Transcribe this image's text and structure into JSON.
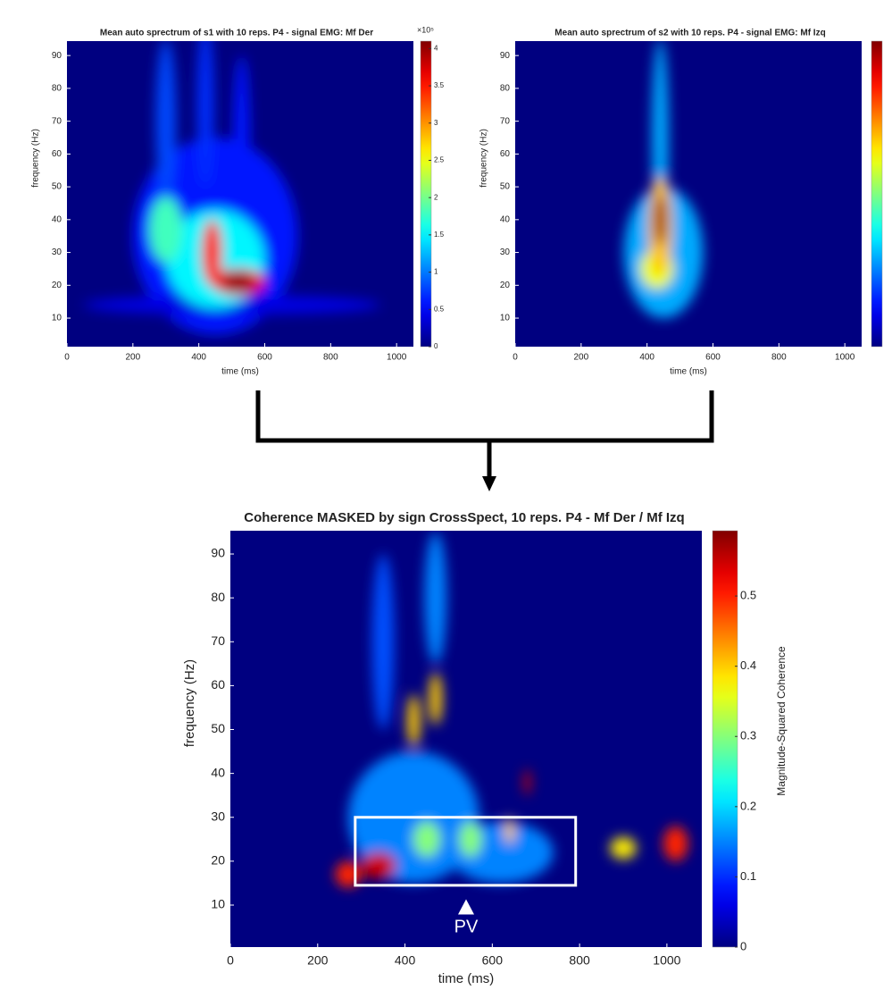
{
  "chart_data": [
    {
      "type": "heatmap",
      "title": "Mean auto sprectrum of s1 with 10 reps. P4 - signal EMG: Mf Der",
      "xlabel": "time (ms)",
      "ylabel": "frequency (Hz)",
      "xlim": [
        0,
        1051
      ],
      "ylim": [
        1.3,
        94.4
      ],
      "xticks": [
        0,
        200,
        400,
        600,
        800,
        1000
      ],
      "yticks": [
        10,
        20,
        30,
        40,
        50,
        60,
        70,
        80,
        90
      ],
      "zlim": [
        0,
        4.1
      ],
      "cticks": [
        0,
        0.5,
        1,
        1.5,
        2,
        2.5,
        3,
        3.5,
        4
      ],
      "colorbar_exponent": "×10⁵",
      "spots": [
        {
          "x": 450,
          "y": 35,
          "sx": 250,
          "sy": 30,
          "value": 0.6
        },
        {
          "x": 500,
          "y": 14,
          "sx": 450,
          "sy": 3,
          "value": 0.4
        },
        {
          "x": 300,
          "y": 70,
          "sx": 30,
          "sy": 25,
          "value": 0.8
        },
        {
          "x": 420,
          "y": 75,
          "sx": 25,
          "sy": 25,
          "value": 0.7
        },
        {
          "x": 530,
          "y": 65,
          "sx": 25,
          "sy": 25,
          "value": 0.6
        },
        {
          "x": 450,
          "y": 28,
          "sx": 150,
          "sy": 15,
          "value": 1.5
        },
        {
          "x": 300,
          "y": 37,
          "sx": 50,
          "sy": 10,
          "value": 1.8
        },
        {
          "x": 440,
          "y": 30,
          "sx": 30,
          "sy": 10,
          "value": 3.5
        },
        {
          "x": 520,
          "y": 21,
          "sx": 80,
          "sy": 4,
          "value": 3.6
        },
        {
          "x": 520,
          "y": 21,
          "sx": 50,
          "sy": 3,
          "value": 4.0
        }
      ]
    },
    {
      "type": "heatmap",
      "title": "Mean auto sprectrum of s2 with 10 reps. P4 - signal EMG: Mf Izq",
      "xlabel": "time (ms)",
      "ylabel": "frequency (Hz)",
      "xlim": [
        0,
        1051
      ],
      "ylim": [
        1.3,
        94.4
      ],
      "xticks": [
        0,
        200,
        400,
        600,
        800,
        1000
      ],
      "yticks": [
        10,
        20,
        30,
        40,
        50,
        60,
        70,
        80,
        90
      ],
      "zlim": [
        0,
        4.1
      ],
      "spots": [
        {
          "x": 450,
          "y": 30,
          "sx": 120,
          "sy": 20,
          "value": 1.2
        },
        {
          "x": 440,
          "y": 65,
          "sx": 25,
          "sy": 30,
          "value": 1.2
        },
        {
          "x": 430,
          "y": 25,
          "sx": 50,
          "sy": 6,
          "value": 2.5
        },
        {
          "x": 440,
          "y": 38,
          "sx": 35,
          "sy": 15,
          "value": 2.8
        },
        {
          "x": 440,
          "y": 40,
          "sx": 18,
          "sy": 8,
          "value": 4.0
        }
      ]
    },
    {
      "type": "heatmap",
      "title": "Coherence MASKED by sign CrossSpect, 10 reps. P4 - Mf Der / Mf Izq",
      "xlabel": "time (ms)",
      "ylabel": "frequency (Hz)",
      "xlim": [
        0,
        1080
      ],
      "ylim": [
        0.43,
        95.3
      ],
      "xticks": [
        0,
        200,
        400,
        600,
        800,
        1000
      ],
      "yticks": [
        10,
        20,
        30,
        40,
        50,
        60,
        70,
        80,
        90
      ],
      "zlim": [
        0,
        0.593
      ],
      "cticks": [
        0,
        0.1,
        0.2,
        0.3,
        0.4,
        0.5
      ],
      "colorbar_label": "Magnitude-Squared Coherence",
      "spots": [
        {
          "x": 420,
          "y": 30,
          "sx": 150,
          "sy": 15,
          "value": 0.15
        },
        {
          "x": 620,
          "y": 22,
          "sx": 120,
          "sy": 7,
          "value": 0.15
        },
        {
          "x": 350,
          "y": 70,
          "sx": 25,
          "sy": 20,
          "value": 0.12
        },
        {
          "x": 470,
          "y": 80,
          "sx": 25,
          "sy": 15,
          "value": 0.15
        },
        {
          "x": 450,
          "y": 25,
          "sx": 30,
          "sy": 4,
          "value": 0.3
        },
        {
          "x": 550,
          "y": 25,
          "sx": 25,
          "sy": 4,
          "value": 0.3
        },
        {
          "x": 640,
          "y": 27,
          "sx": 10,
          "sy": 3,
          "value": 0.4
        },
        {
          "x": 420,
          "y": 52,
          "sx": 15,
          "sy": 6,
          "value": 0.4
        },
        {
          "x": 470,
          "y": 57,
          "sx": 15,
          "sy": 6,
          "value": 0.4
        },
        {
          "x": 900,
          "y": 23,
          "sx": 30,
          "sy": 2.5,
          "value": 0.38
        },
        {
          "x": 1020,
          "y": 24,
          "sx": 28,
          "sy": 4,
          "value": 0.5
        },
        {
          "x": 270,
          "y": 17,
          "sx": 30,
          "sy": 3,
          "value": 0.5
        },
        {
          "x": 340,
          "y": 19,
          "sx": 40,
          "sy": 3,
          "value": 0.55
        },
        {
          "x": 680,
          "y": 38,
          "sx": 8,
          "sy": 3,
          "value": 0.55
        }
      ],
      "box": {
        "xlim": [
          286,
          791
        ],
        "ylim": [
          14.5,
          30
        ],
        "color": "#ffffff"
      },
      "annotations": [
        {
          "text": "PV",
          "x": 540,
          "y": 9.5
        }
      ]
    }
  ]
}
